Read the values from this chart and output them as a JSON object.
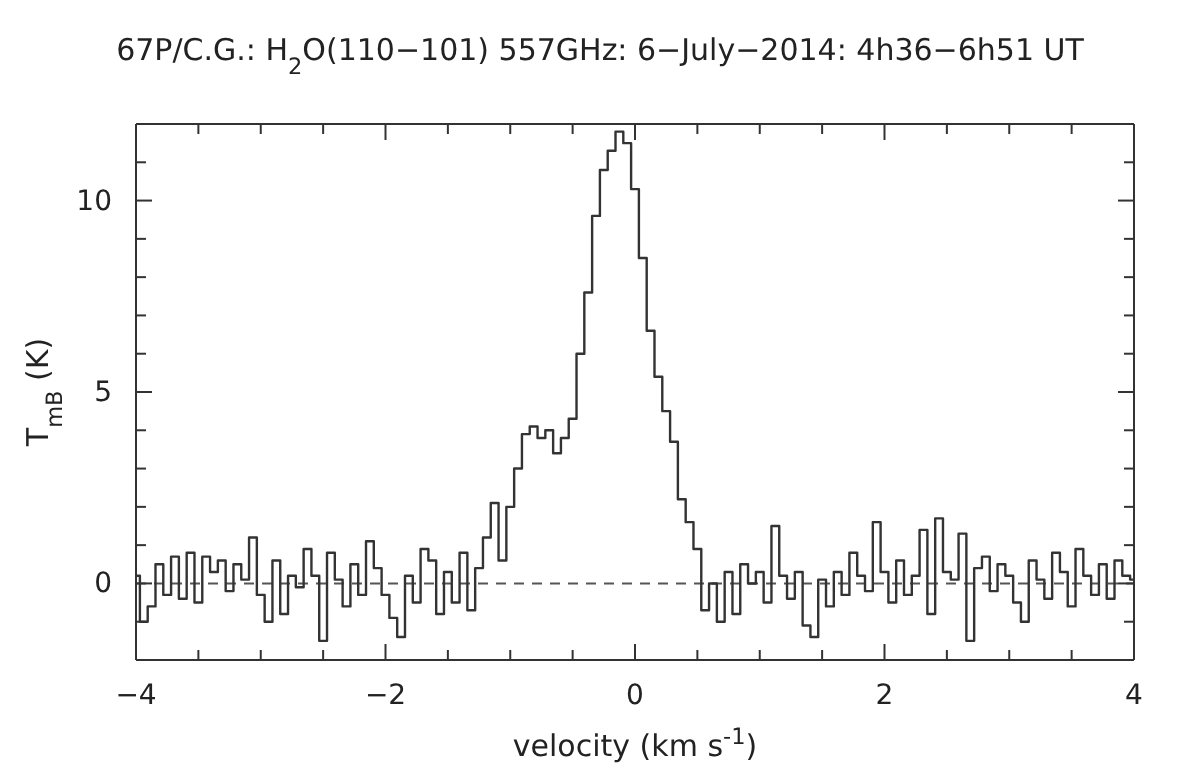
{
  "chart_data": {
    "type": "step",
    "title": "67P/C.G.: H$_{2}$O(110−101) 557GHz: 6−July−2014: 4h36−6h51 UT",
    "xlabel": "velocity (km s$^{-1}$)",
    "ylabel": "T$_{mB}$ (K)",
    "x": [
      -4,
      -3.9375,
      -3.875,
      -3.8125,
      -3.75,
      -3.6875,
      -3.625,
      -3.5625,
      -3.5,
      -3.4375,
      -3.375,
      -3.3125,
      -3.25,
      -3.1875,
      -3.125,
      -3.0625,
      -3,
      -2.9375,
      -2.875,
      -2.8125,
      -2.75,
      -2.6875,
      -2.625,
      -2.5625,
      -2.5,
      -2.4375,
      -2.375,
      -2.3125,
      -2.25,
      -2.1875,
      -2.125,
      -2.0625,
      -2,
      -1.9375,
      -1.875,
      -1.8125,
      -1.75,
      -1.6875,
      -1.625,
      -1.5625,
      -1.5,
      -1.4375,
      -1.375,
      -1.3125,
      -1.25,
      -1.1875,
      -1.125,
      -1.0625,
      -1,
      -0.9375,
      -0.875,
      -0.8125,
      -0.75,
      -0.6875,
      -0.625,
      -0.5625,
      -0.5,
      -0.4375,
      -0.375,
      -0.3125,
      -0.25,
      -0.1875,
      -0.125,
      -0.0625,
      0,
      0.0625,
      0.125,
      0.1875,
      0.25,
      0.3125,
      0.375,
      0.4375,
      0.5,
      0.5625,
      0.625,
      0.6875,
      0.75,
      0.8125,
      0.875,
      0.9375,
      1,
      1.0625,
      1.125,
      1.1875,
      1.25,
      1.3125,
      1.375,
      1.4375,
      1.5,
      1.5625,
      1.625,
      1.6875,
      1.75,
      1.8125,
      1.875,
      1.9375,
      2,
      2.0625,
      2.125,
      2.1875,
      2.25,
      2.3125,
      2.375,
      2.4375,
      2.5,
      2.5625,
      2.625,
      2.6875,
      2.75,
      2.8125,
      2.875,
      2.9375,
      3,
      3.0625,
      3.125,
      3.1875,
      3.25,
      3.3125,
      3.375,
      3.4375,
      3.5,
      3.5625,
      3.625,
      3.6875,
      3.75,
      3.8125,
      3.875,
      3.9375,
      4
    ],
    "series": [
      {
        "color": "#333333",
        "values": [
          0.2,
          -1.0,
          -0.6,
          0.5,
          -0.3,
          0.7,
          -0.4,
          0.8,
          -0.5,
          0.7,
          0.3,
          0.6,
          -0.2,
          0.5,
          0.1,
          1.2,
          -0.3,
          -1.0,
          0.6,
          -0.8,
          0.2,
          -0.1,
          0.9,
          0.2,
          -1.5,
          0.8,
          0.1,
          -0.6,
          0.5,
          -0.3,
          1.1,
          0.4,
          -0.3,
          -0.9,
          -1.4,
          0.2,
          -0.5,
          0.9,
          0.6,
          -0.8,
          0.3,
          -0.5,
          0.8,
          -0.7,
          0.4,
          1.2,
          2.1,
          0.6,
          2.0,
          3.0,
          3.9,
          4.1,
          3.8,
          4.0,
          3.4,
          3.8,
          4.3,
          6.0,
          7.6,
          9.6,
          10.8,
          11.3,
          11.8,
          11.5,
          10.3,
          8.5,
          6.6,
          5.4,
          4.5,
          3.7,
          2.2,
          1.6,
          0.9,
          -0.7,
          0.0,
          -1.0,
          0.3,
          -0.8,
          0.5,
          0.0,
          0.3,
          -0.5,
          1.5,
          0.2,
          -0.4,
          0.3,
          -1.1,
          -1.4,
          0.1,
          -0.6,
          0.3,
          -0.3,
          0.8,
          0.2,
          -0.2,
          1.6,
          0.3,
          -0.5,
          0.6,
          -0.3,
          0.2,
          1.4,
          -0.8,
          1.7,
          0.3,
          0.1,
          1.3,
          -1.5,
          0.4,
          0.7,
          -0.2,
          0.5,
          0.2,
          -0.5,
          -1.0,
          0.6,
          0.1,
          -0.4,
          0.8,
          0.3,
          -0.6,
          0.9,
          0.2,
          -0.3,
          0.5,
          -0.4,
          0.6,
          0.2,
          0.1
        ]
      }
    ],
    "xlim": [
      -4,
      4
    ],
    "ylim": [
      -2,
      12
    ],
    "xticks": [
      -4,
      {
        "value": -3.5,
        "label": null
      },
      {
        "value": -3,
        "label": null
      },
      {
        "value": -2.5,
        "label": null
      },
      -2,
      {
        "value": -1.5,
        "label": null
      },
      {
        "value": -1,
        "label": null
      },
      {
        "value": -0.5,
        "label": null
      },
      0,
      {
        "value": 0.5,
        "label": null
      },
      {
        "value": 1,
        "label": null
      },
      {
        "value": 1.5,
        "label": null
      },
      2,
      {
        "value": 2.5,
        "label": null
      },
      {
        "value": 3,
        "label": null
      },
      {
        "value": 3.5,
        "label": null
      },
      4
    ],
    "yticks": [
      {
        "value": -2,
        "label": null
      },
      {
        "value": -1,
        "label": null
      },
      0,
      {
        "value": 1,
        "label": null
      },
      {
        "value": 2,
        "label": null
      },
      {
        "value": 3,
        "label": null
      },
      {
        "value": 4,
        "label": null
      },
      5,
      {
        "value": 6,
        "label": null
      },
      {
        "value": 7,
        "label": null
      },
      {
        "value": 8,
        "label": null
      },
      {
        "value": 9,
        "label": null
      },
      10,
      {
        "value": 11,
        "label": null
      },
      {
        "value": 12,
        "label": null
      }
    ],
    "ref_lines": [
      {
        "axis": "y",
        "value": 0,
        "color": "#555555",
        "line_style": "dashed"
      }
    ],
    "grid": false
  }
}
